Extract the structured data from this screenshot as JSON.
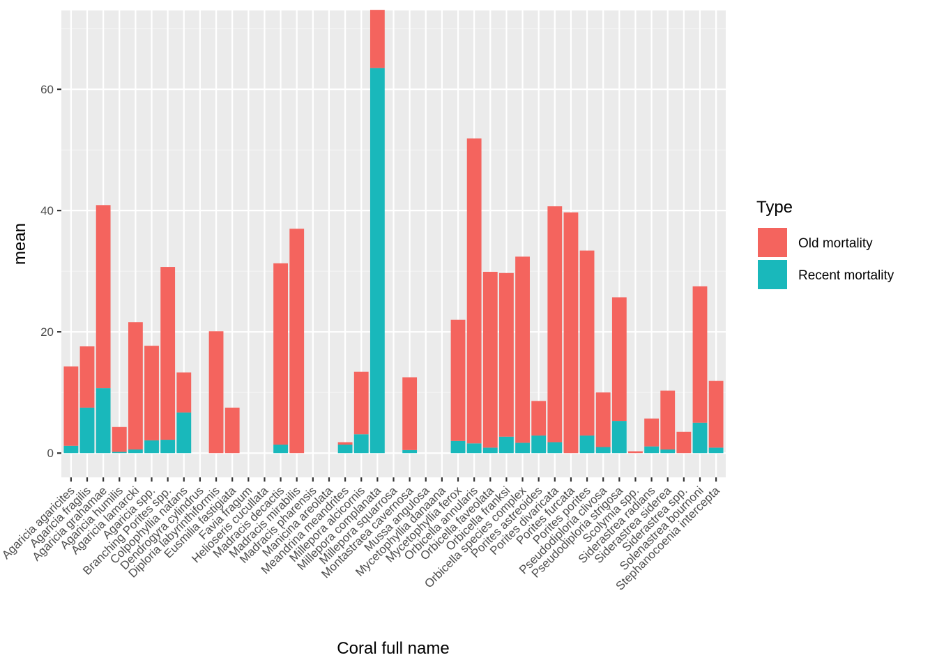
{
  "chart_data": {
    "type": "bar",
    "stacked": true,
    "xlabel": "Coral full name",
    "ylabel": "mean",
    "ylim": [
      -4,
      73
    ],
    "yticks": [
      0,
      20,
      40,
      60
    ],
    "ytick_labels": [
      "0",
      "20",
      "40",
      "60"
    ],
    "grid": true,
    "legend": {
      "title": "Type",
      "position": "right"
    },
    "categories": [
      "Agaricia agaricites",
      "Agaricia fragilis",
      "Agaricia grahamae",
      "Agaricia humilis",
      "Agaricia lamarcki",
      "Agaricia spp.",
      "Branching Porites spp.",
      "Colpophyllia natans",
      "Dendrogyra cylindrus",
      "Diploria labyrinthiformis",
      "Eusmilia fastigiata",
      "Favia fragum",
      "Helioseris cucullata",
      "Madracis decactis",
      "Madracis mirabilis",
      "Madracis pharensis",
      "Manicina areolata",
      "Meandrina meandrites",
      "Millepora alcicornis",
      "Millepora complanata",
      "Millepora squarrosa",
      "Montastraea cavernosa",
      "Mussa angulosa",
      "Mycetophyllia danaana",
      "Mycetophyllia ferox",
      "Orbicella annularis",
      "Orbicella faveolata",
      "Orbicella franksi",
      "Orbicella species complex",
      "Porites astreoides",
      "Porites divaricata",
      "Porites furcata",
      "Porites porites",
      "Pseudodiploria clivosa",
      "Pseudodiploria strigosa",
      "Scolymia spp.",
      "Siderastrea radians",
      "Siderastrea siderea",
      "Siderastrea spp.",
      "Solenastrea bournoni",
      "Stephanocoenia intercepta"
    ],
    "series": [
      {
        "name": "Recent mortality",
        "color": "#19b8bb",
        "values": [
          1.2,
          7.5,
          10.7,
          0.2,
          0.6,
          2.1,
          2.2,
          6.7,
          0,
          0,
          0,
          0,
          0,
          1.4,
          0,
          0,
          0,
          1.4,
          3.1,
          63.5,
          0,
          0.5,
          0,
          0,
          2.0,
          1.6,
          0.9,
          2.7,
          1.7,
          2.9,
          1.8,
          0,
          2.9,
          1.0,
          5.3,
          0,
          1.1,
          0.6,
          0,
          5.0,
          0.9
        ]
      },
      {
        "name": "Old mortality",
        "color": "#f4645e",
        "values": [
          13.1,
          10.1,
          30.2,
          4.1,
          21.0,
          15.6,
          28.5,
          6.6,
          0,
          20.1,
          7.5,
          0,
          0,
          29.9,
          37.0,
          0,
          0,
          0.4,
          10.3,
          9.6,
          0,
          12.0,
          0,
          0,
          20.0,
          50.3,
          29.0,
          27.0,
          30.7,
          5.7,
          38.9,
          39.7,
          30.5,
          9.0,
          20.4,
          0.3,
          4.6,
          9.7,
          3.5,
          22.5,
          11.0
        ]
      }
    ],
    "legend_order": [
      "Old mortality",
      "Recent mortality"
    ]
  }
}
